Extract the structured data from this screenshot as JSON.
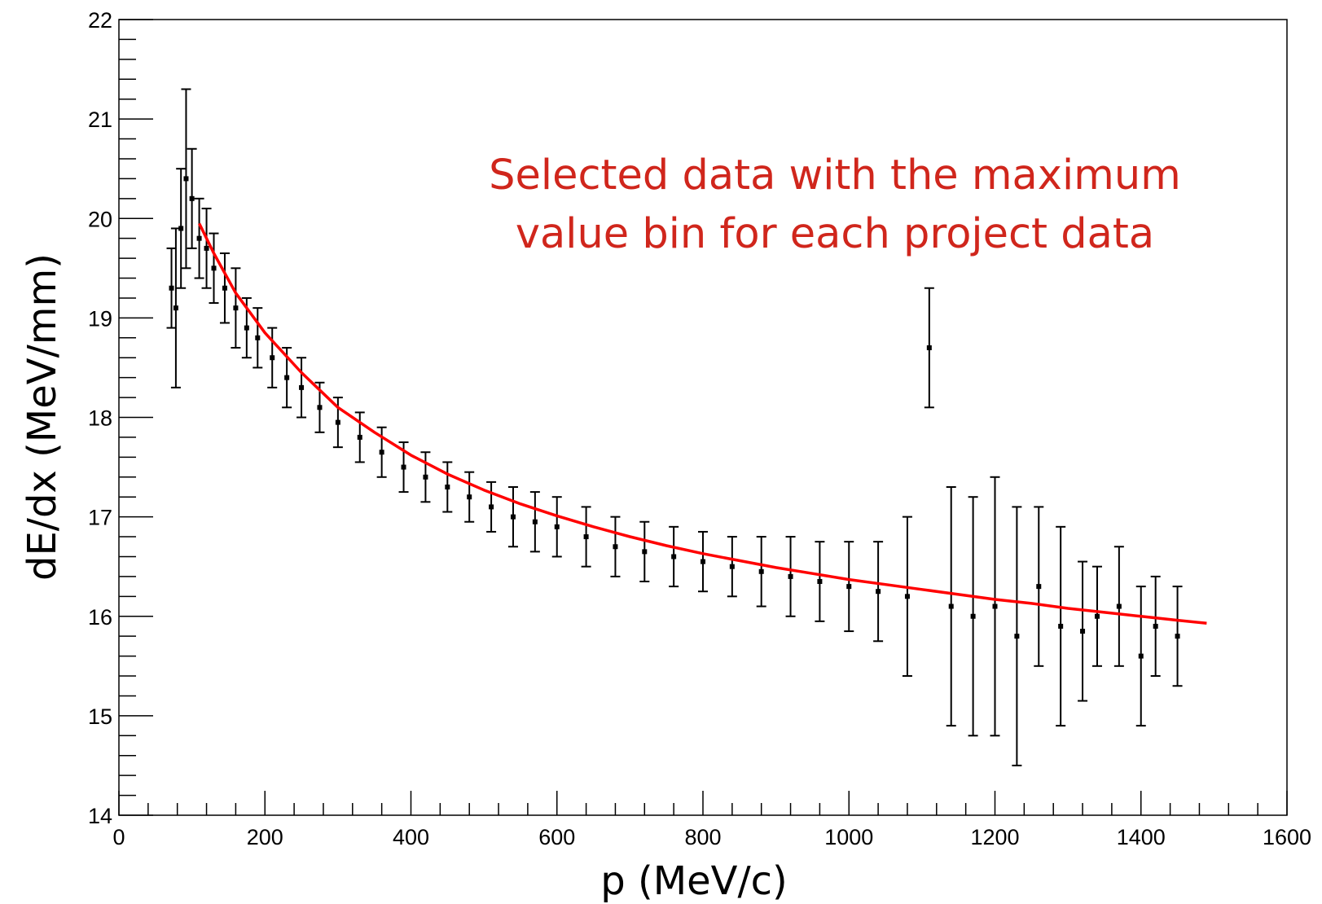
{
  "chart_data": {
    "type": "scatter",
    "title": "",
    "xlabel": "p (MeV/c)",
    "ylabel": "dE/dx (MeV/mm)",
    "xlim": [
      0,
      1600
    ],
    "ylim": [
      14,
      22
    ],
    "x_ticks": [
      "0",
      "200",
      "400",
      "600",
      "800",
      "1000",
      "1200",
      "1400",
      "1600"
    ],
    "y_ticks": [
      "14",
      "15",
      "16",
      "17",
      "18",
      "19",
      "20",
      "21",
      "22"
    ],
    "grid": false,
    "legend": "none",
    "annotation": {
      "line1": "Selected data with the maximum",
      "line2": "value bin for each project data"
    },
    "series": [
      {
        "kind": "points-with-error-bars",
        "color": "#000000",
        "x": [
          72,
          78,
          85,
          92,
          100,
          110,
          120,
          130,
          145,
          160,
          175,
          190,
          210,
          230,
          250,
          275,
          300,
          330,
          360,
          390,
          420,
          450,
          480,
          510,
          540,
          570,
          600,
          640,
          680,
          720,
          760,
          800,
          840,
          880,
          920,
          960,
          1000,
          1040,
          1080,
          1110,
          1140,
          1170,
          1200,
          1230,
          1260,
          1290,
          1320,
          1340,
          1370,
          1400,
          1420,
          1450
        ],
        "y": [
          19.3,
          19.1,
          19.9,
          20.4,
          20.2,
          19.8,
          19.7,
          19.5,
          19.3,
          19.1,
          18.9,
          18.8,
          18.6,
          18.4,
          18.3,
          18.1,
          17.95,
          17.8,
          17.65,
          17.5,
          17.4,
          17.3,
          17.2,
          17.1,
          17.0,
          16.95,
          16.9,
          16.8,
          16.7,
          16.65,
          16.6,
          16.55,
          16.5,
          16.45,
          16.4,
          16.35,
          16.3,
          16.25,
          16.2,
          18.7,
          16.1,
          16.0,
          16.1,
          15.8,
          16.3,
          15.9,
          15.85,
          16.0,
          16.1,
          15.6,
          15.9,
          15.8
        ],
        "yerr": [
          0.4,
          0.8,
          0.6,
          0.9,
          0.5,
          0.4,
          0.4,
          0.35,
          0.35,
          0.4,
          0.3,
          0.3,
          0.3,
          0.3,
          0.3,
          0.25,
          0.25,
          0.25,
          0.25,
          0.25,
          0.25,
          0.25,
          0.25,
          0.25,
          0.3,
          0.3,
          0.3,
          0.3,
          0.3,
          0.3,
          0.3,
          0.3,
          0.3,
          0.35,
          0.4,
          0.4,
          0.45,
          0.5,
          0.8,
          0.6,
          1.2,
          1.2,
          1.3,
          1.3,
          0.8,
          1.0,
          0.7,
          0.5,
          0.6,
          0.7,
          0.5,
          0.5
        ]
      },
      {
        "kind": "fit-curve",
        "color": "#ff0000",
        "x": [
          110,
          130,
          160,
          200,
          250,
          300,
          350,
          400,
          450,
          500,
          550,
          600,
          650,
          700,
          750,
          800,
          850,
          900,
          950,
          1000,
          1050,
          1100,
          1150,
          1200,
          1250,
          1300,
          1350,
          1400,
          1450,
          1490
        ],
        "y": [
          19.95,
          19.65,
          19.25,
          18.85,
          18.45,
          18.1,
          17.85,
          17.62,
          17.43,
          17.27,
          17.13,
          17.01,
          16.9,
          16.8,
          16.71,
          16.63,
          16.56,
          16.49,
          16.43,
          16.37,
          16.32,
          16.27,
          16.22,
          16.17,
          16.13,
          16.08,
          16.04,
          16.0,
          15.96,
          15.93
        ]
      }
    ]
  }
}
